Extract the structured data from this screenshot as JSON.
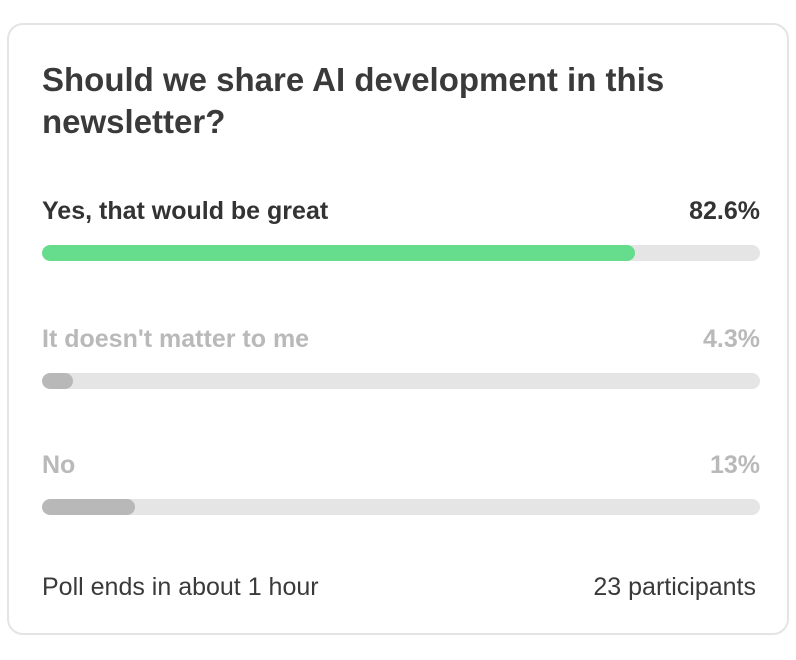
{
  "poll": {
    "question": "Should we share AI development in this newsletter?",
    "options": [
      {
        "label": "Yes, that would be great",
        "percent_label": "82.6%",
        "fraction": 0.826,
        "bar_color": "#66dd8d",
        "state": "leading"
      },
      {
        "label": "It doesn't matter to me",
        "percent_label": "4.3%",
        "fraction": 0.043,
        "bar_color": "#b8b8b8",
        "state": "trailing"
      },
      {
        "label": "No",
        "percent_label": "13%",
        "fraction": 0.13,
        "bar_color": "#b8b8b8",
        "state": "trailing"
      }
    ],
    "footer": {
      "time_left": "Poll ends in about 1 hour",
      "participants": "23 participants"
    }
  },
  "colors": {
    "track": "#e5e5e5",
    "border": "#e4e4e4",
    "text": "#3a3a3a",
    "muted_text": "#b9b9b9",
    "leading_bar": "#66dd8d"
  }
}
